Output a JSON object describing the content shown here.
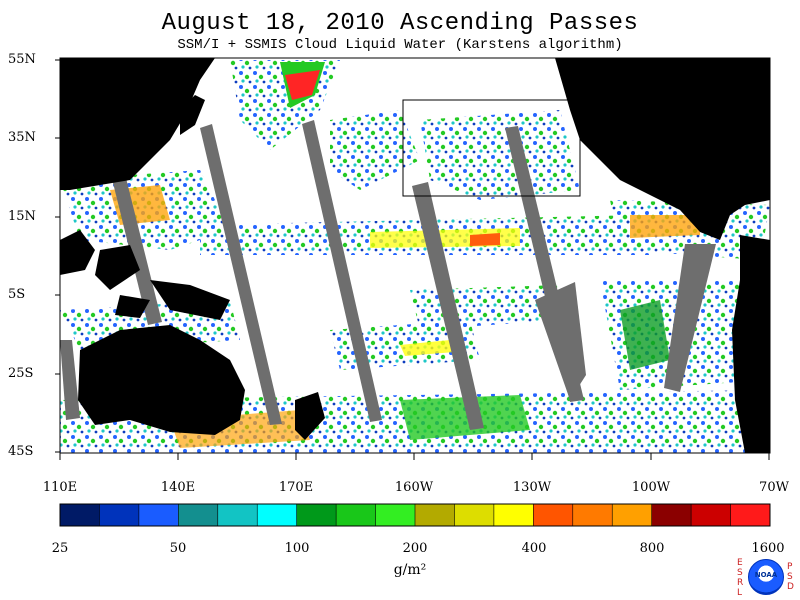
{
  "title": "August 18, 2010  Ascending Passes",
  "subtitle": "SSM/I + SSMIS Cloud Liquid Water (Karstens algorithm)",
  "map": {
    "lat_labels": [
      "55N",
      "35N",
      "15N",
      "5S",
      "25S",
      "45S"
    ],
    "lon_labels": [
      "110E",
      "140E",
      "170E",
      "160W",
      "130W",
      "100W",
      "70W"
    ],
    "land_color": "#000000",
    "no_data_color": "#6e6e6e",
    "background_color": "#ffffff"
  },
  "colorbar": {
    "colors": [
      "#001a66",
      "#0033bb",
      "#1a5cff",
      "#138f8f",
      "#12c4c4",
      "#00ffff",
      "#00991a",
      "#19c719",
      "#33ee22",
      "#b3aa00",
      "#dddd00",
      "#ffff00",
      "#ff5500",
      "#ff7a00",
      "#ffa000",
      "#8b0000",
      "#cc0000",
      "#ff1a1a"
    ],
    "tick_labels": [
      "25",
      "50",
      "100",
      "200",
      "400",
      "800",
      "1600"
    ],
    "units": "g/m²"
  },
  "logo": {
    "text": "NOAA",
    "left_letters": [
      "E",
      "S",
      "R",
      "L"
    ],
    "right_letters": [
      "P",
      "S",
      "D"
    ]
  }
}
